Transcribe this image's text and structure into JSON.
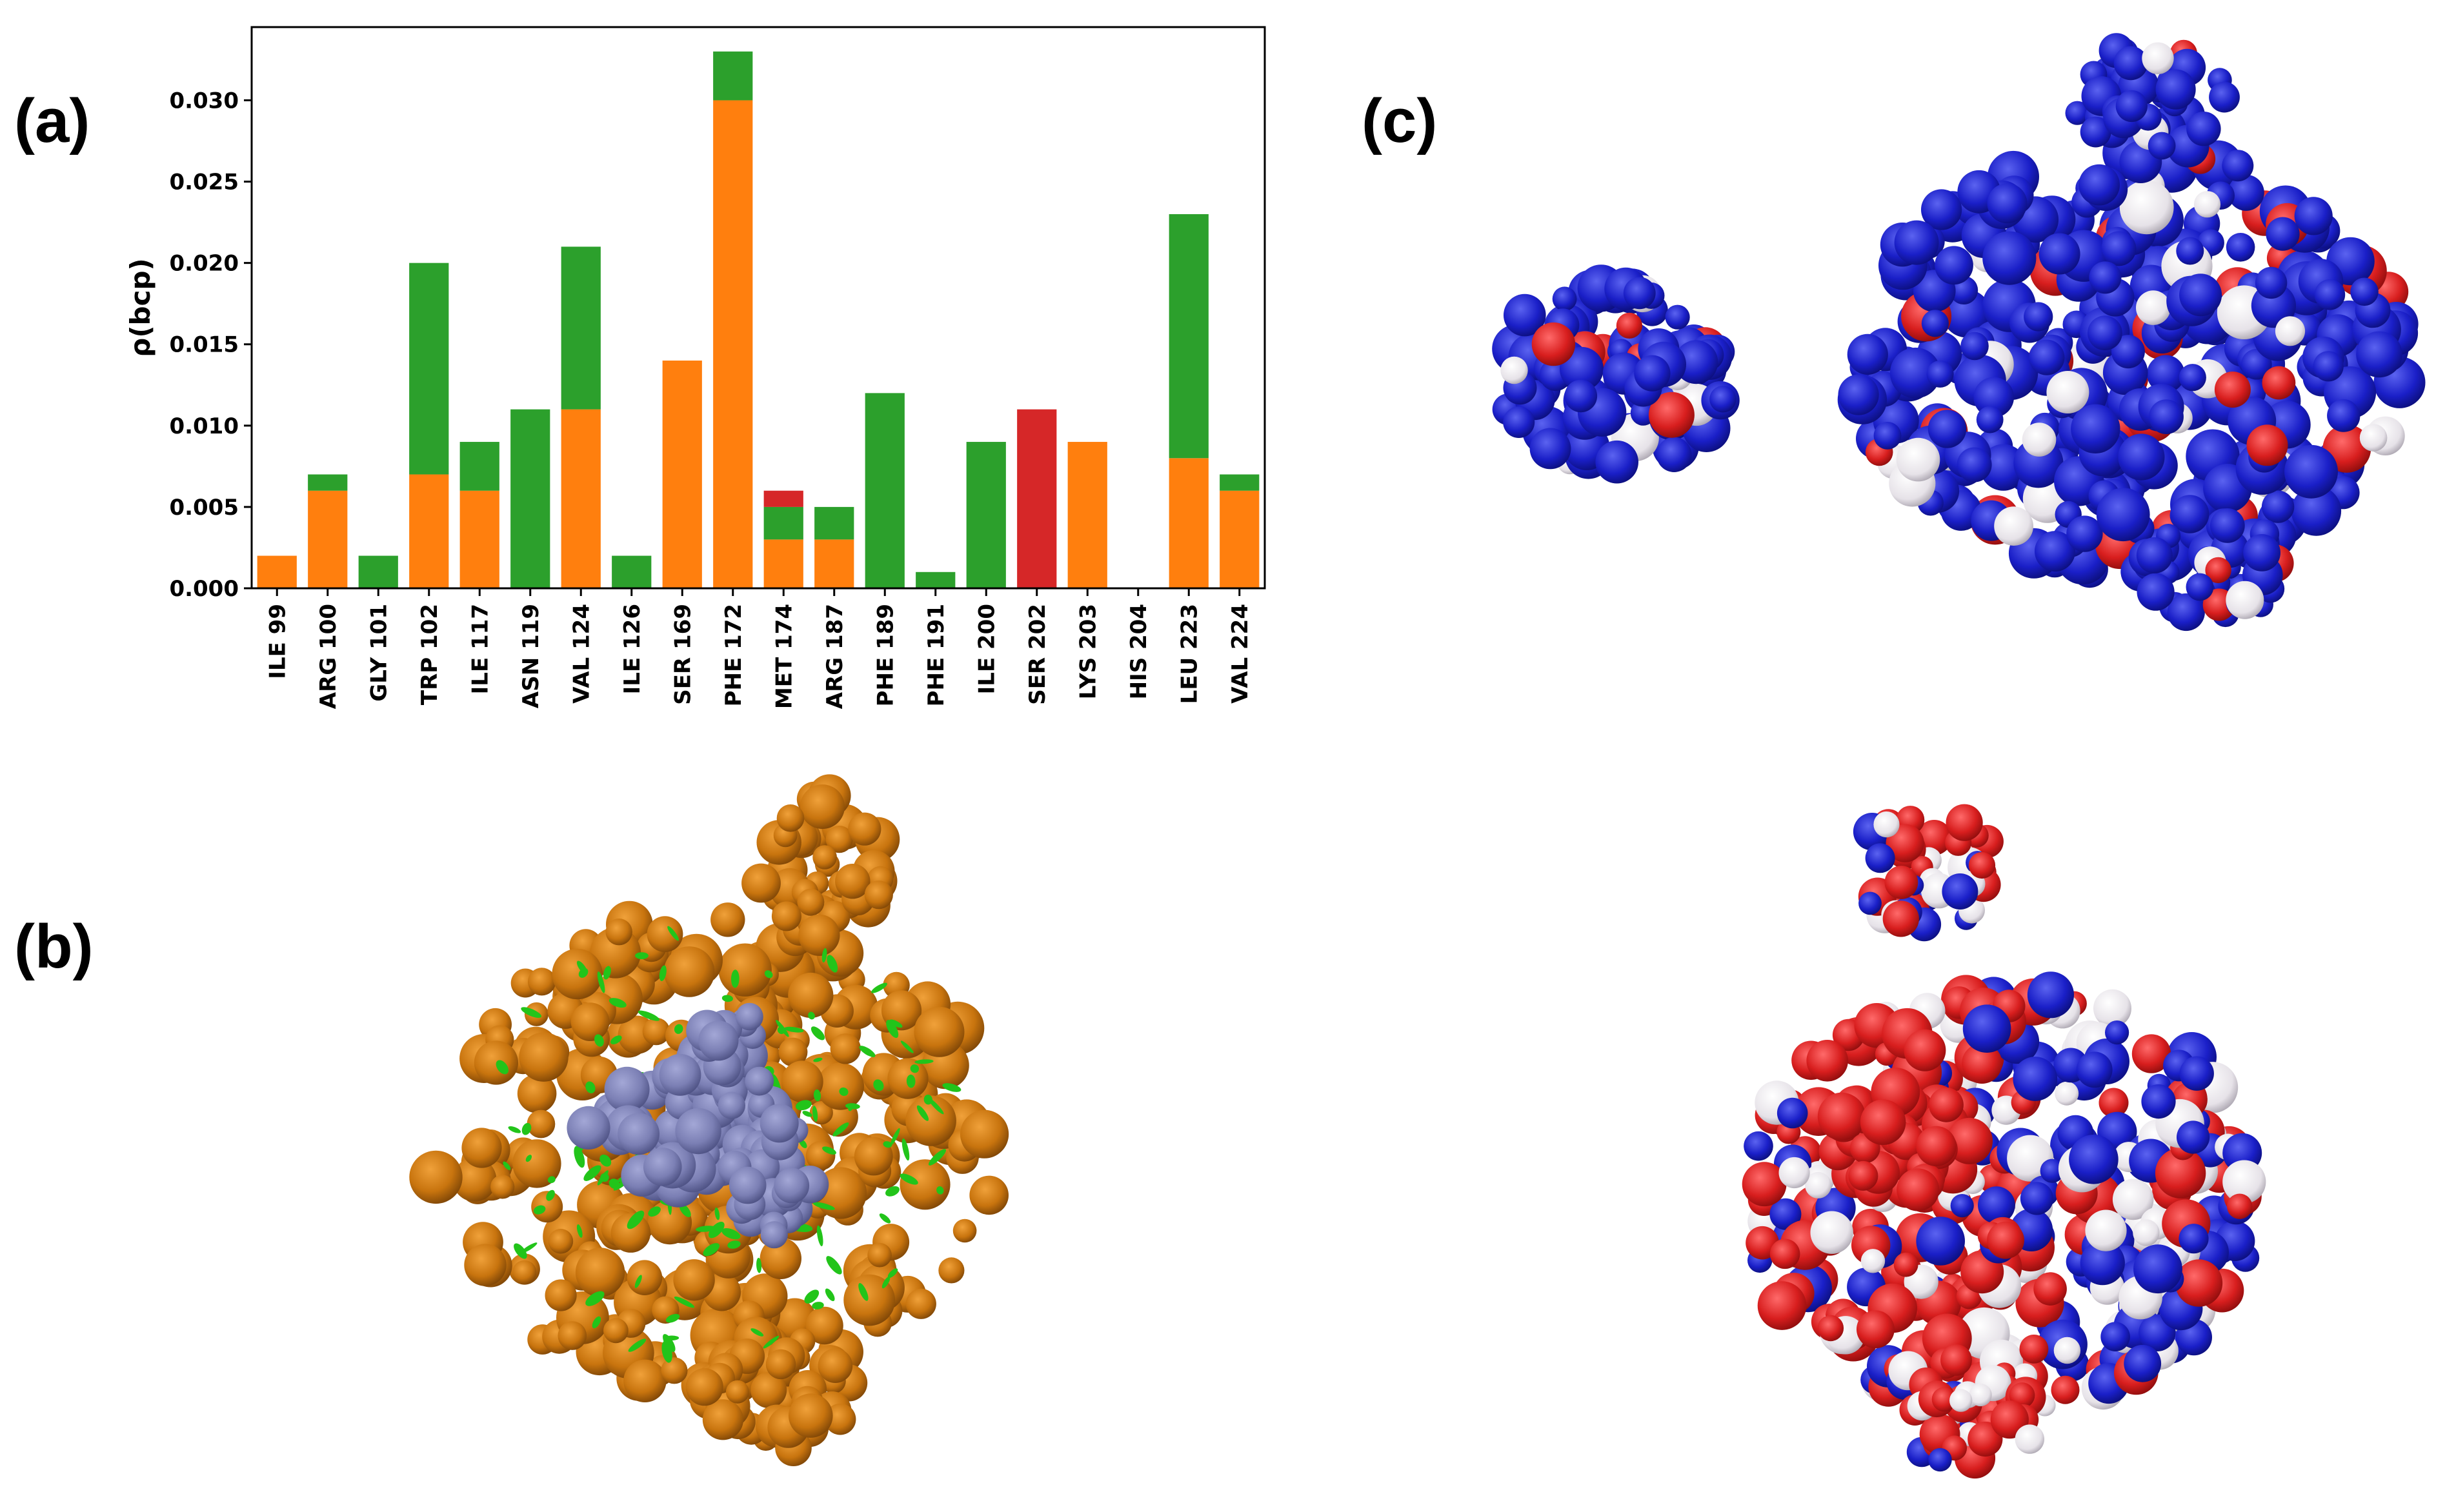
{
  "panels": {
    "a": "(a)",
    "b": "(b)",
    "c": "(c)"
  },
  "colors": {
    "orange": "#ff7f0e",
    "green": "#2ca02c",
    "red": "#d62728",
    "ligand": "#7b7fb4",
    "protein": "#c8740e",
    "nci": "#22c41a",
    "esp_blue": "#1a1fc8",
    "esp_red": "#d81e1e",
    "esp_white": "#e9e6ea"
  },
  "chart_data": {
    "type": "bar",
    "stacked": true,
    "title": "",
    "xlabel": "",
    "ylabel": "ρ(bcp)",
    "ylim": [
      0,
      0.0345
    ],
    "yticks": [
      "0.000",
      "0.005",
      "0.010",
      "0.015",
      "0.020",
      "0.025",
      "0.030"
    ],
    "grid": false,
    "legend": "none",
    "categories": [
      "ILE 99",
      "ARG 100",
      "GLY 101",
      "TRP 102",
      "ILE 117",
      "ASN 119",
      "VAL 124",
      "ILE 126",
      "SER 169",
      "PHE 172",
      "MET 174",
      "ARG 187",
      "PHE 189",
      "PHE 191",
      "ILE 200",
      "SER 202",
      "LYS 203",
      "HIS 204",
      "LEU 223",
      "VAL 224"
    ],
    "series": [
      {
        "color": "#ff7f0e",
        "values": [
          0.002,
          0.006,
          0,
          0.007,
          0.006,
          0,
          0.011,
          0,
          0.014,
          0.03,
          0.003,
          0.003,
          0,
          0,
          0,
          0,
          0.009,
          0,
          0.008,
          0.006
        ]
      },
      {
        "color": "#2ca02c",
        "values": [
          0,
          0.001,
          0.002,
          0.013,
          0.003,
          0.011,
          0.01,
          0.002,
          0,
          0.003,
          0.002,
          0.002,
          0.012,
          0.001,
          0.009,
          0,
          0,
          0,
          0.015,
          0.001
        ]
      },
      {
        "color": "#d62728",
        "values": [
          0,
          0,
          0,
          0,
          0,
          0,
          0,
          0,
          0,
          0,
          0.001,
          0,
          0,
          0,
          0,
          0.011,
          0,
          0,
          0,
          0
        ]
      }
    ]
  }
}
